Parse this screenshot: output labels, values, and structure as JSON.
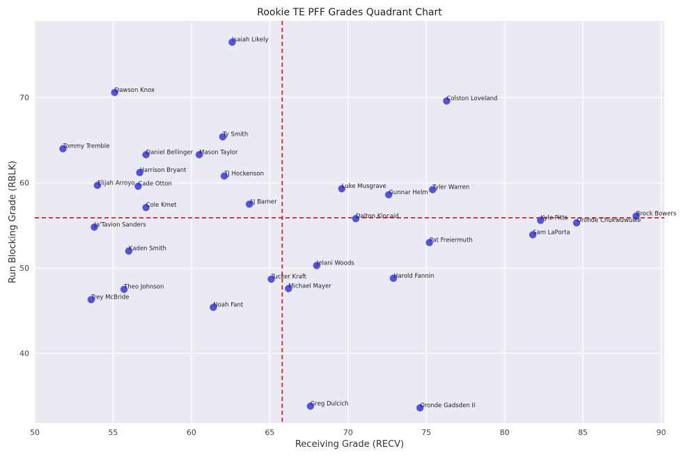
{
  "chart_data": {
    "type": "scatter",
    "title": "Rookie TE PFF Grades Quadrant Chart",
    "xlabel": "Receiving Grade (RECV)",
    "ylabel": "Run Blocking Grade (RBLK)",
    "xlim": [
      50,
      90.2
    ],
    "ylim": [
      31.8,
      79
    ],
    "xticks": [
      "50",
      "55",
      "60",
      "65",
      "70",
      "75",
      "80",
      "85",
      "90"
    ],
    "yticks": [
      "40",
      "50",
      "60",
      "70"
    ],
    "grid": true,
    "colors": {
      "point": "#3b3bf0",
      "quadrant_line": "#e01b1b",
      "plot_bg": "#eaeaf2",
      "grid": "#ffffff"
    },
    "quadrant_lines": {
      "x": 65.8,
      "y": 55.9
    },
    "points": [
      {
        "label": "Isaiah Likely",
        "x": 62.6,
        "y": 76.5
      },
      {
        "label": "Dawson Knox",
        "x": 55.1,
        "y": 70.6
      },
      {
        "label": "Colston Loveland",
        "x": 76.3,
        "y": 69.6
      },
      {
        "label": "Ty Smith",
        "x": 62.0,
        "y": 65.4
      },
      {
        "label": "Tommy Tremble",
        "x": 51.8,
        "y": 64.0
      },
      {
        "label": "Daniel Bellinger",
        "x": 57.1,
        "y": 63.3
      },
      {
        "label": "Mason Taylor",
        "x": 60.5,
        "y": 63.3
      },
      {
        "label": "Harrison Bryant",
        "x": 56.7,
        "y": 61.2
      },
      {
        "label": "TJ Hockenson",
        "x": 62.1,
        "y": 60.8
      },
      {
        "label": "Elijah Arroyo",
        "x": 54.0,
        "y": 59.7
      },
      {
        "label": "Cade Otton",
        "x": 56.6,
        "y": 59.6
      },
      {
        "label": "Luke Musgrave",
        "x": 69.6,
        "y": 59.3
      },
      {
        "label": "Tyler Warren",
        "x": 75.4,
        "y": 59.2
      },
      {
        "label": "Gunnar Helm",
        "x": 72.6,
        "y": 58.6
      },
      {
        "label": "AJ Barner",
        "x": 63.7,
        "y": 57.5
      },
      {
        "label": "Cole Kmet",
        "x": 57.1,
        "y": 57.1
      },
      {
        "label": "Brock Bowers",
        "x": 88.4,
        "y": 56.1
      },
      {
        "label": "Dalton Kincaid",
        "x": 70.5,
        "y": 55.8
      },
      {
        "label": "Kyle Pitts",
        "x": 82.3,
        "y": 55.6
      },
      {
        "label": "Oronde Chukwuwuike",
        "x": 84.6,
        "y": 55.3
      },
      {
        "label": "Ja'Tavion Sanders",
        "x": 53.8,
        "y": 54.8
      },
      {
        "label": "Sam LaPorta",
        "x": 81.8,
        "y": 53.9
      },
      {
        "label": "Pat Freiermuth",
        "x": 75.2,
        "y": 53.0
      },
      {
        "label": "Kaden Smith",
        "x": 56.0,
        "y": 52.0
      },
      {
        "label": "Jelani Woods",
        "x": 68.0,
        "y": 50.3
      },
      {
        "label": "Harold Fannin",
        "x": 72.9,
        "y": 48.8
      },
      {
        "label": "Tucker Kraft",
        "x": 65.1,
        "y": 48.7
      },
      {
        "label": "Michael Mayer",
        "x": 66.2,
        "y": 47.6
      },
      {
        "label": "Theo Johnson",
        "x": 55.7,
        "y": 47.5
      },
      {
        "label": "Trey McBride",
        "x": 53.6,
        "y": 46.3
      },
      {
        "label": "Noah Fant",
        "x": 61.4,
        "y": 45.4
      },
      {
        "label": "Greg Dulcich",
        "x": 67.6,
        "y": 33.8
      },
      {
        "label": "Oronde Gadsden II",
        "x": 74.6,
        "y": 33.6
      }
    ]
  }
}
